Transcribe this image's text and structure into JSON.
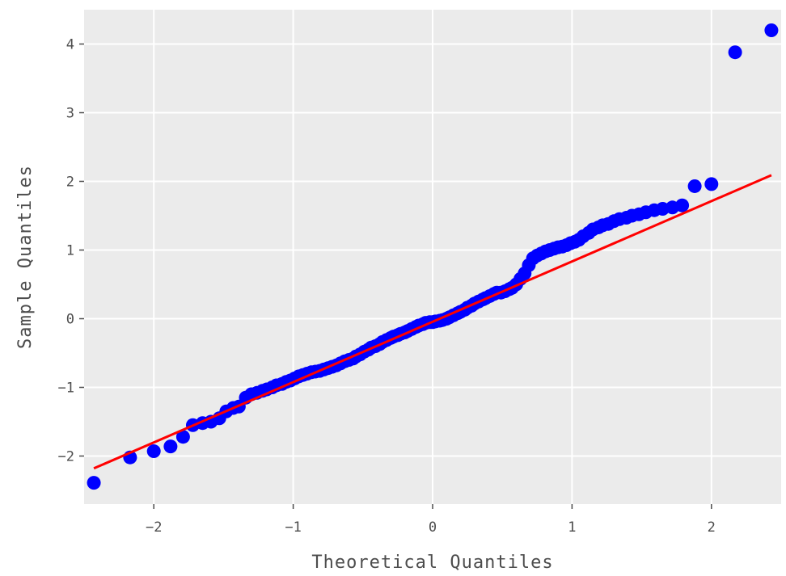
{
  "chart_data": {
    "type": "scatter",
    "title": "",
    "xlabel": "Theoretical Quantiles",
    "ylabel": "Sample Quantiles",
    "xlim": [
      -2.5,
      2.5
    ],
    "ylim": [
      -2.7,
      4.5
    ],
    "x_ticks": [
      -2,
      -1,
      0,
      1,
      2
    ],
    "y_ticks": [
      -2,
      -1,
      0,
      1,
      2,
      3,
      4
    ],
    "x_tick_labels": [
      "−2",
      "−1",
      "0",
      "1",
      "2"
    ],
    "y_tick_labels": [
      "−2",
      "−1",
      "0",
      "1",
      "2",
      "3",
      "4"
    ],
    "grid": true,
    "background_color": "#ebebeb",
    "grid_color": "#ffffff",
    "series": [
      {
        "kind": "points",
        "color": "#0000ff",
        "x": [
          -2.43,
          -2.17,
          -2.0,
          -1.88,
          -1.79,
          -1.72,
          -1.65,
          -1.59,
          -1.53,
          -1.48,
          -1.43,
          -1.39,
          -1.34,
          -1.3,
          -1.26,
          -1.22,
          -1.19,
          -1.15,
          -1.12,
          -1.08,
          -1.05,
          -1.02,
          -0.99,
          -0.96,
          -0.93,
          -0.9,
          -0.87,
          -0.84,
          -0.81,
          -0.78,
          -0.75,
          -0.72,
          -0.69,
          -0.66,
          -0.63,
          -0.6,
          -0.57,
          -0.55,
          -0.52,
          -0.49,
          -0.46,
          -0.44,
          -0.41,
          -0.38,
          -0.36,
          -0.33,
          -0.3,
          -0.28,
          -0.25,
          -0.23,
          -0.2,
          -0.18,
          -0.15,
          -0.12,
          -0.1,
          -0.07,
          -0.05,
          -0.02,
          0.0,
          0.02,
          0.05,
          0.07,
          0.1,
          0.12,
          0.15,
          0.18,
          0.2,
          0.23,
          0.25,
          0.28,
          0.3,
          0.33,
          0.36,
          0.38,
          0.41,
          0.44,
          0.46,
          0.49,
          0.52,
          0.55,
          0.57,
          0.6,
          0.63,
          0.66,
          0.69,
          0.72,
          0.75,
          0.78,
          0.81,
          0.84,
          0.87,
          0.9,
          0.93,
          0.96,
          0.99,
          1.02,
          1.05,
          1.08,
          1.12,
          1.15,
          1.19,
          1.22,
          1.26,
          1.3,
          1.34,
          1.39,
          1.43,
          1.48,
          1.53,
          1.59,
          1.65,
          1.72,
          1.79,
          1.88,
          2.0,
          2.17,
          2.43
        ],
        "y": [
          -2.39,
          -2.02,
          -1.93,
          -1.86,
          -1.72,
          -1.55,
          -1.52,
          -1.5,
          -1.45,
          -1.35,
          -1.3,
          -1.28,
          -1.15,
          -1.1,
          -1.08,
          -1.05,
          -1.03,
          -1.0,
          -0.97,
          -0.95,
          -0.92,
          -0.9,
          -0.87,
          -0.84,
          -0.82,
          -0.8,
          -0.78,
          -0.77,
          -0.76,
          -0.74,
          -0.72,
          -0.7,
          -0.68,
          -0.65,
          -0.62,
          -0.6,
          -0.58,
          -0.55,
          -0.52,
          -0.48,
          -0.45,
          -0.42,
          -0.4,
          -0.37,
          -0.34,
          -0.31,
          -0.28,
          -0.26,
          -0.24,
          -0.22,
          -0.2,
          -0.18,
          -0.15,
          -0.12,
          -0.1,
          -0.08,
          -0.06,
          -0.05,
          -0.05,
          -0.04,
          -0.03,
          -0.02,
          0.0,
          0.02,
          0.05,
          0.08,
          0.1,
          0.13,
          0.16,
          0.19,
          0.22,
          0.25,
          0.28,
          0.3,
          0.33,
          0.36,
          0.38,
          0.38,
          0.4,
          0.43,
          0.45,
          0.5,
          0.58,
          0.66,
          0.78,
          0.88,
          0.92,
          0.95,
          0.98,
          1.0,
          1.02,
          1.04,
          1.05,
          1.07,
          1.1,
          1.12,
          1.15,
          1.2,
          1.25,
          1.3,
          1.33,
          1.36,
          1.38,
          1.42,
          1.45,
          1.47,
          1.5,
          1.52,
          1.55,
          1.58,
          1.6,
          1.62,
          1.65,
          1.93,
          1.96,
          3.88,
          4.2
        ]
      },
      {
        "kind": "reference-line",
        "color": "#ff0000",
        "x": [
          -2.43,
          2.43
        ],
        "y": [
          -2.18,
          2.09
        ]
      }
    ]
  }
}
